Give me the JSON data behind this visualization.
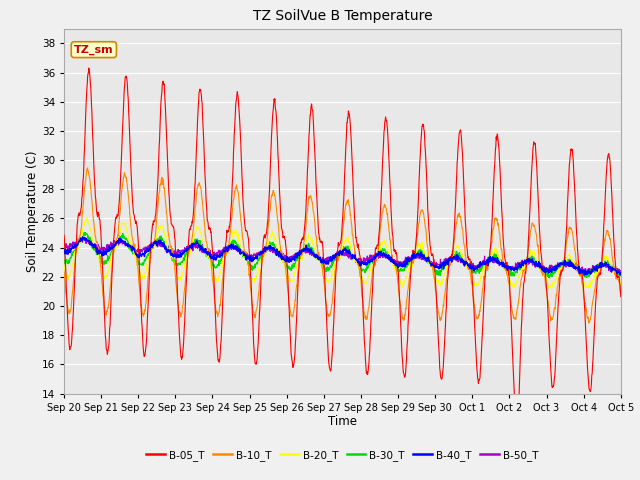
{
  "title": "TZ SoilVue B Temperature",
  "xlabel": "Time",
  "ylabel": "Soil Temperature (C)",
  "ylim": [
    14,
    39
  ],
  "yticks": [
    14,
    16,
    18,
    20,
    22,
    24,
    26,
    28,
    30,
    32,
    34,
    36,
    38
  ],
  "fig_bg_color": "#f0f0f0",
  "plot_bg_color": "#e8e8e8",
  "series_colors": {
    "B-05_T": "#ff0000",
    "B-10_T": "#ff8800",
    "B-20_T": "#ffff00",
    "B-30_T": "#00dd00",
    "B-40_T": "#0000ff",
    "B-50_T": "#aa00cc"
  },
  "annotation_text": "TZ_sm",
  "annotation_color": "#cc0000",
  "annotation_bg": "#ffffcc",
  "annotation_border": "#cc8800",
  "xtick_labels": [
    "Sep 20",
    "Sep 21",
    "Sep 22",
    "Sep 23",
    "Sep 24",
    "Sep 25",
    "Sep 26",
    "Sep 27",
    "Sep 28",
    "Sep 29",
    "Sep 30",
    "Oct 1",
    "Oct 2",
    "Oct 3",
    "Oct 4",
    "Oct 5"
  ],
  "n_days": 15
}
